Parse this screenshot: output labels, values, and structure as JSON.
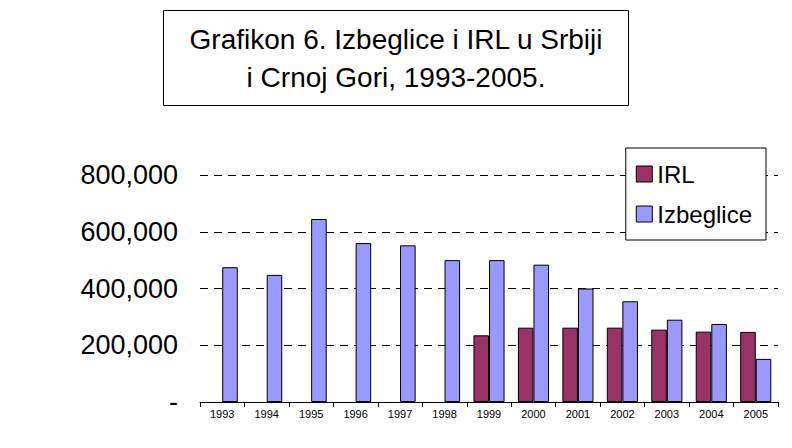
{
  "chart_data": {
    "type": "bar",
    "title": "Grafikon 6. Izbeglice i IRL u Srbiji\ni Crnoj Gori, 1993-2005.",
    "categories": [
      "1993",
      "1994",
      "1995",
      "1996",
      "1997",
      "1998",
      "1999",
      "2000",
      "2001",
      "2002",
      "2003",
      "2004",
      "2005"
    ],
    "series": [
      {
        "name": "IRL",
        "color": "#993366",
        "values": [
          null,
          null,
          null,
          null,
          null,
          null,
          235000,
          262000,
          262000,
          262000,
          255000,
          248000,
          247000
        ]
      },
      {
        "name": "Izbeglice",
        "color": "#9999ff",
        "values": [
          475000,
          448000,
          645000,
          560000,
          552000,
          500000,
          500000,
          484000,
          400000,
          355000,
          290000,
          275000,
          152000
        ]
      }
    ],
    "ylim": [
      0,
      800000
    ],
    "yticks": [
      {
        "value": 0,
        "label": "-"
      },
      {
        "value": 200000,
        "label": "200,000"
      },
      {
        "value": 400000,
        "label": "400,000"
      },
      {
        "value": 600000,
        "label": "600,000"
      },
      {
        "value": 800000,
        "label": "800,000"
      }
    ],
    "grid": true,
    "legend": "upper right"
  }
}
